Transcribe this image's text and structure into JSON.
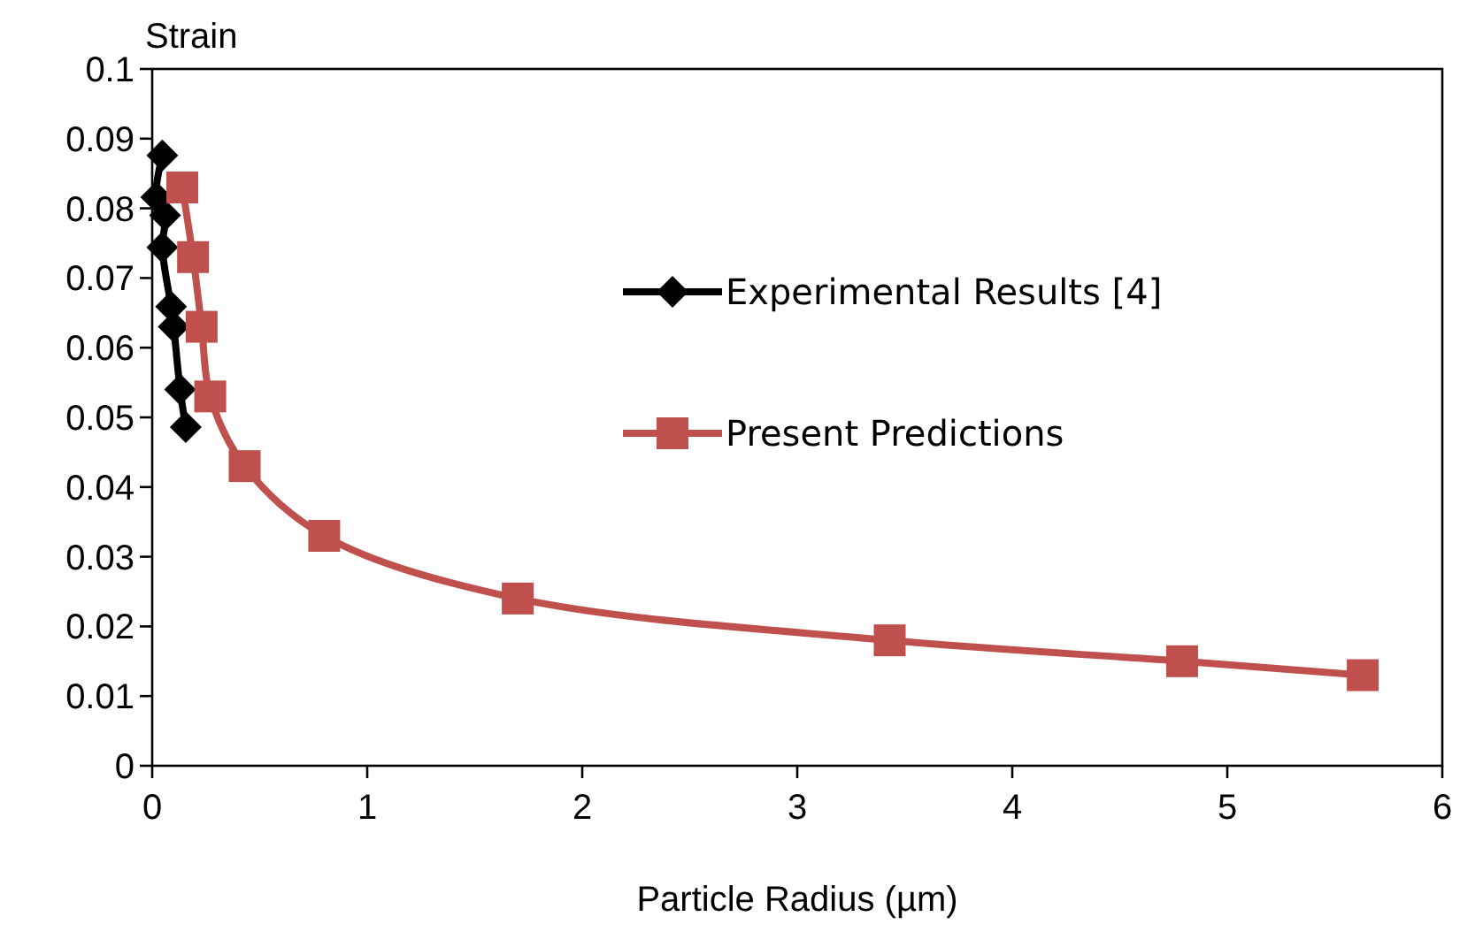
{
  "chart_data": {
    "type": "line",
    "ylabel": "Strain",
    "xlabel": "Particle Radius (µm)",
    "xlim": [
      0,
      6
    ],
    "xticks": [
      0,
      1,
      2,
      3,
      4,
      5,
      6
    ],
    "ylim": [
      0,
      0.1
    ],
    "yticks": [
      0,
      0.01,
      0.02,
      0.03,
      0.04,
      0.05,
      0.06,
      0.07,
      0.08,
      0.09,
      0.1
    ],
    "grid": false,
    "legend": "right",
    "series": [
      {
        "name": "Experimental Results [4]",
        "color": "#000000",
        "marker": "diamond",
        "x": [
          0.047,
          0.019,
          0.06,
          0.047,
          0.088,
          0.1,
          0.13,
          0.156
        ],
        "values": [
          0.0876,
          0.0816,
          0.079,
          0.0744,
          0.0659,
          0.063,
          0.054,
          0.0486
        ]
      },
      {
        "name": "Present Predictions",
        "color": "#c0504d",
        "marker": "square",
        "x": [
          0.14,
          0.19,
          0.23,
          0.27,
          0.43,
          0.8,
          1.7,
          3.43,
          4.79,
          5.63
        ],
        "values": [
          0.083,
          0.073,
          0.063,
          0.053,
          0.043,
          0.033,
          0.024,
          0.018,
          0.015,
          0.013
        ]
      }
    ]
  }
}
